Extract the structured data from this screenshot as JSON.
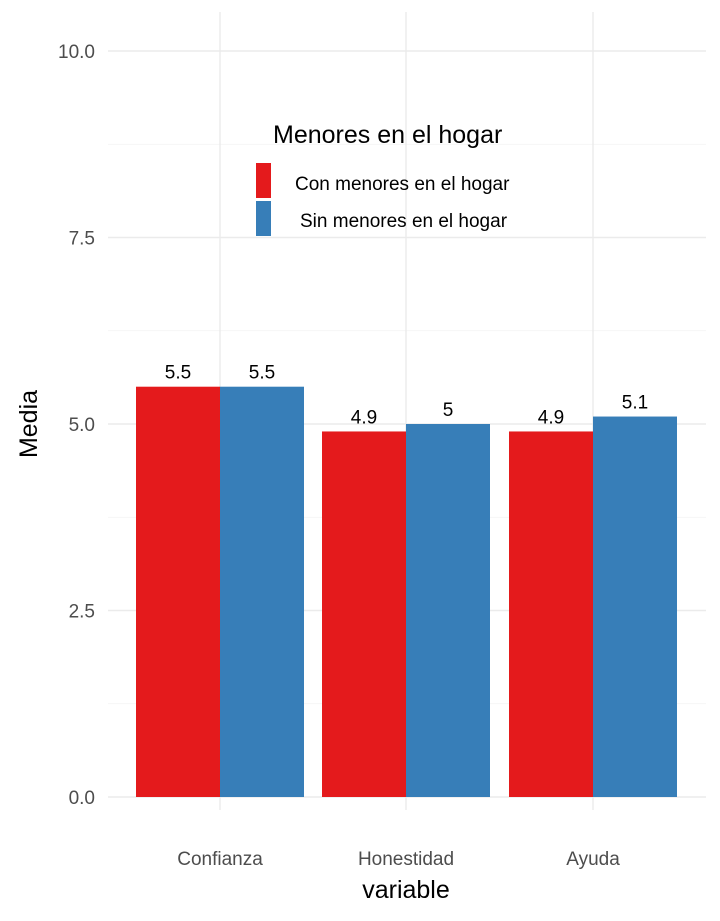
{
  "chart_data": {
    "type": "bar",
    "xlabel": "variable",
    "ylabel": "Media",
    "categories": [
      "Confianza",
      "Honestidad",
      "Ayuda"
    ],
    "series": [
      {
        "name": "Con menores en el hogar",
        "values": [
          5.5,
          4.9,
          4.9
        ],
        "labels": [
          "5.5",
          "4.9",
          "4.9"
        ],
        "color": "#e41a1c"
      },
      {
        "name": "Sin menores en el hogar",
        "values": [
          5.5,
          5.0,
          5.1
        ],
        "labels": [
          "5.5",
          "5",
          "5.1"
        ],
        "color": "#377eb8"
      }
    ],
    "ylim": [
      0,
      10
    ],
    "yticks": [
      "0.0",
      "2.5",
      "5.0",
      "7.5",
      "10.0"
    ],
    "legend": {
      "title": "Menores en el hogar",
      "position": "top-right inside"
    },
    "grid": true
  }
}
